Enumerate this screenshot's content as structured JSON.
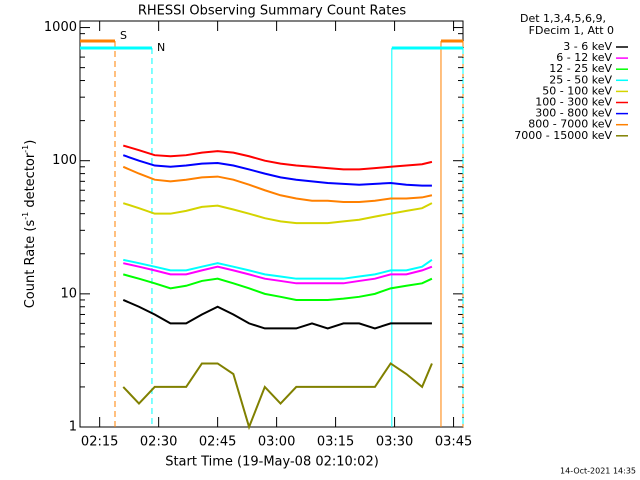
{
  "chart_data": {
    "type": "line",
    "title": "RHESSI Observing Summary Count Rates",
    "x_label": "Start Time (19-May-08 02:10:02)",
    "y_label": [
      "Count Rate (s",
      "-1",
      " detector",
      "-1",
      ")"
    ],
    "legend_header": [
      "Det 1,3,4,5,6,9,",
      "FDecim 1, Att 0"
    ],
    "footer": "14-Oct-2021 14:35",
    "log_y": true,
    "grid": false,
    "xlim": [
      10,
      107.4
    ],
    "ylim": [
      1,
      1120
    ],
    "xticks": [
      {
        "value": 15,
        "label": "02:15"
      },
      {
        "value": 30,
        "label": "02:30"
      },
      {
        "value": 45,
        "label": "02:45"
      },
      {
        "value": 60,
        "label": "03:00"
      },
      {
        "value": 75,
        "label": "03:15"
      },
      {
        "value": 90,
        "label": "03:30"
      },
      {
        "value": 105,
        "label": "03:45"
      }
    ],
    "yticks": [
      1,
      10,
      100,
      1000
    ],
    "x": [
      21,
      25,
      29,
      33,
      37,
      41,
      45,
      49,
      53,
      57,
      61,
      65,
      69,
      73,
      77,
      81,
      85,
      89,
      93,
      97,
      99.5
    ],
    "series": [
      {
        "name": "3 - 6 keV",
        "color": "#000000",
        "values": [
          9,
          8,
          7,
          6,
          6,
          7,
          8,
          7,
          6,
          5.5,
          5.5,
          5.5,
          6,
          5.5,
          6,
          6,
          5.5,
          6,
          6,
          6,
          6
        ]
      },
      {
        "name": "6 - 12 keV",
        "color": "#ff00ff",
        "values": [
          17,
          16,
          15,
          14,
          14,
          15,
          16,
          15,
          14,
          13,
          12.5,
          12,
          12,
          12,
          12,
          12.5,
          13,
          14,
          14,
          15,
          16
        ]
      },
      {
        "name": "12 - 25 keV",
        "color": "#00ff00",
        "values": [
          14,
          13,
          12,
          11,
          11.5,
          12.5,
          13,
          12,
          11,
          10,
          9.5,
          9,
          9,
          9,
          9.2,
          9.5,
          10,
          11,
          11.5,
          12,
          13
        ]
      },
      {
        "name": "25 - 50 keV",
        "color": "#00ffff",
        "values": [
          18,
          17,
          16,
          15,
          15,
          16,
          17,
          16,
          15,
          14,
          13.5,
          13,
          13,
          13,
          13,
          13.5,
          14,
          15,
          15,
          16,
          18
        ]
      },
      {
        "name": "50 - 100 keV",
        "color": "#d4d400",
        "values": [
          48,
          44,
          40,
          40,
          42,
          45,
          46,
          43,
          40,
          37,
          35,
          34,
          34,
          34,
          35,
          36,
          38,
          40,
          42,
          44,
          48
        ]
      },
      {
        "name": "100 - 300 keV",
        "color": "#ff0000",
        "values": [
          130,
          120,
          110,
          108,
          110,
          115,
          118,
          115,
          108,
          100,
          95,
          92,
          90,
          88,
          86,
          86,
          88,
          90,
          92,
          94,
          98
        ]
      },
      {
        "name": "300 - 800 keV",
        "color": "#0000ff",
        "values": [
          110,
          100,
          92,
          90,
          92,
          95,
          96,
          92,
          86,
          80,
          75,
          72,
          70,
          68,
          67,
          66,
          67,
          68,
          66,
          65,
          65
        ]
      },
      {
        "name": "800 - 7000 keV",
        "color": "#ff8000",
        "values": [
          90,
          80,
          72,
          70,
          72,
          75,
          76,
          72,
          66,
          60,
          55,
          52,
          50,
          50,
          49,
          49,
          50,
          52,
          52,
          53,
          55
        ]
      },
      {
        "name": "7000 - 15000 keV",
        "color": "#808000",
        "values": [
          2,
          1.5,
          2,
          2,
          2,
          3,
          3,
          2.5,
          1,
          2,
          1.5,
          2,
          2,
          2,
          2,
          2,
          2,
          3,
          2.5,
          2,
          3
        ]
      }
    ],
    "flags": [
      {
        "label": "S",
        "color": "#ff8000",
        "intervals": [
          [
            10,
            18.9
          ],
          [
            101.8,
            107.4
          ]
        ]
      },
      {
        "label": "N",
        "color": "#00ffff",
        "intervals": [
          [
            10,
            28.3
          ],
          [
            89.3,
            107.4
          ]
        ]
      }
    ]
  }
}
